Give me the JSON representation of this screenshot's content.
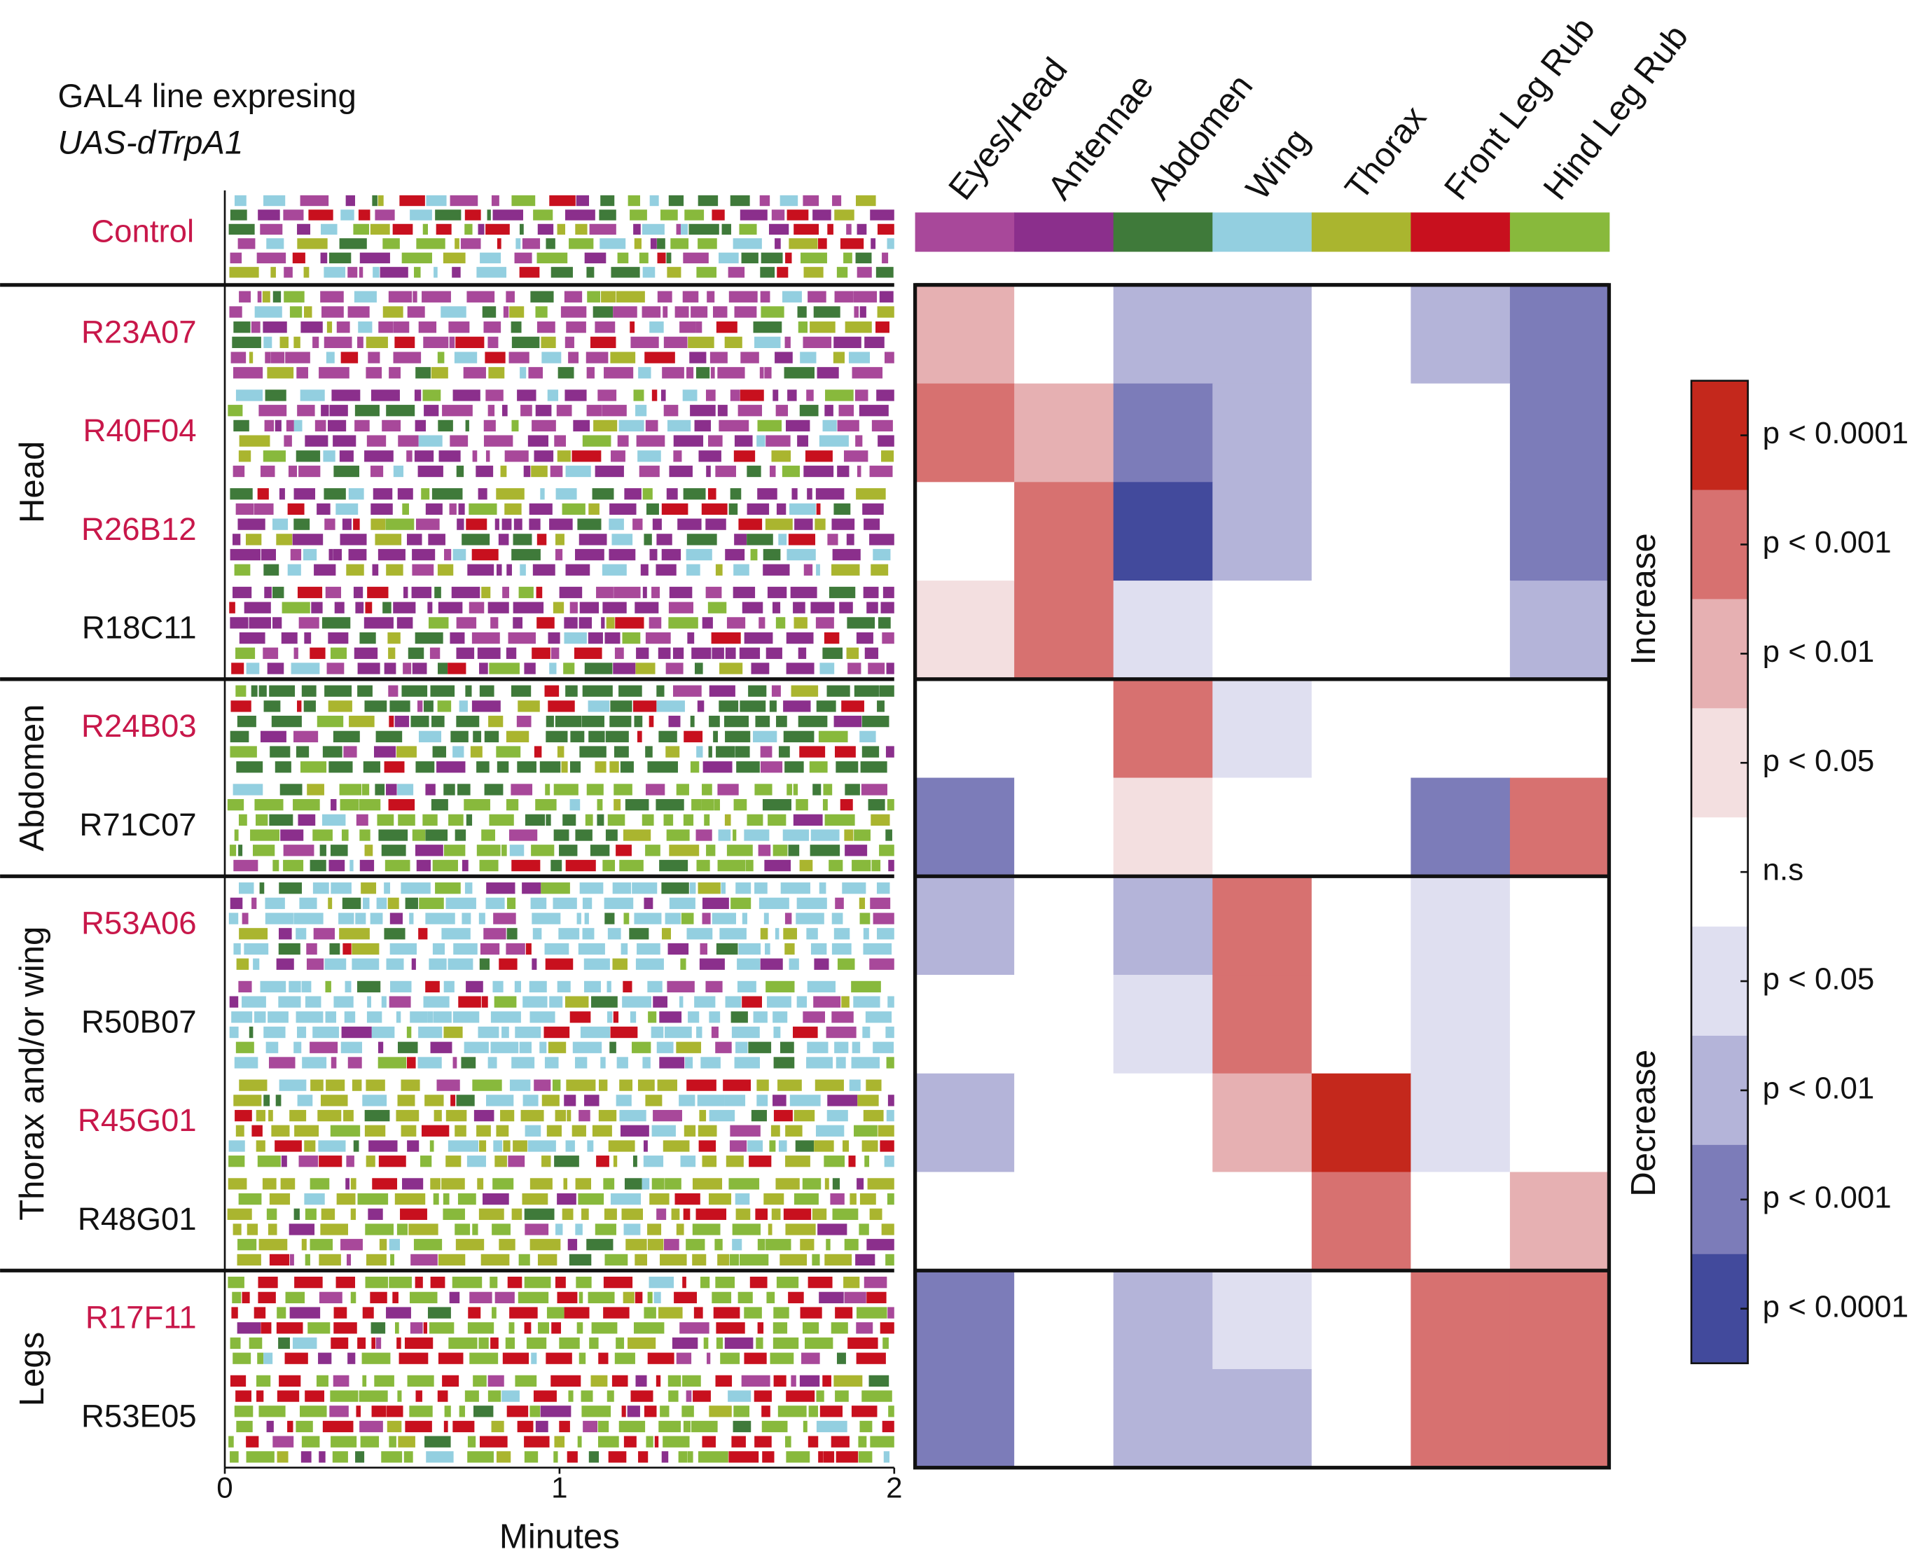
{
  "chart_data": {
    "type": "heatmap",
    "title_lines": [
      "GAL4 line expresing",
      "UAS-dTrpA1"
    ],
    "highlight_color": "#c8174a",
    "control": {
      "name": "Control",
      "highlight": true
    },
    "behaviors": [
      {
        "name": "Eyes/Head",
        "color": "#a8489a"
      },
      {
        "name": "Antennae",
        "color": "#8b2f8c"
      },
      {
        "name": "Abdomen",
        "color": "#3f7a3a"
      },
      {
        "name": "Wing",
        "color": "#93cfe0"
      },
      {
        "name": "Thorax",
        "color": "#aab52f"
      },
      {
        "name": "Front Leg Rub",
        "color": "#c8101e"
      },
      {
        "name": "Hind Leg Rub",
        "color": "#88b93c"
      }
    ],
    "groups": [
      {
        "name": "Head",
        "rows": [
          {
            "name": "R23A07",
            "highlight": true,
            "levels": [
              2,
              0,
              -2,
              -2,
              0,
              -2,
              -3
            ]
          },
          {
            "name": "R40F04",
            "highlight": true,
            "levels": [
              3,
              2,
              -3,
              -2,
              0,
              0,
              -3
            ]
          },
          {
            "name": "R26B12",
            "highlight": true,
            "levels": [
              0,
              3,
              -4,
              -2,
              0,
              0,
              -3
            ]
          },
          {
            "name": "R18C11",
            "highlight": false,
            "levels": [
              1,
              3,
              -1,
              0,
              0,
              0,
              -2
            ]
          }
        ]
      },
      {
        "name": "Abdomen",
        "rows": [
          {
            "name": "R24B03",
            "highlight": true,
            "levels": [
              0,
              0,
              3,
              -1,
              0,
              0,
              0
            ]
          },
          {
            "name": "R71C07",
            "highlight": false,
            "levels": [
              -3,
              0,
              1,
              0,
              0,
              -3,
              3
            ]
          }
        ]
      },
      {
        "name": "Thorax and/or wing",
        "rows": [
          {
            "name": "R53A06",
            "highlight": true,
            "levels": [
              -2,
              0,
              -2,
              3,
              0,
              -1,
              0
            ]
          },
          {
            "name": "R50B07",
            "highlight": false,
            "levels": [
              0,
              0,
              -1,
              3,
              0,
              -1,
              0
            ]
          },
          {
            "name": "R45G01",
            "highlight": true,
            "levels": [
              -2,
              0,
              0,
              2,
              4,
              -1,
              0
            ]
          },
          {
            "name": "R48G01",
            "highlight": false,
            "levels": [
              0,
              0,
              0,
              0,
              3,
              0,
              2
            ]
          }
        ]
      },
      {
        "name": "Legs",
        "rows": [
          {
            "name": "R17F11",
            "highlight": true,
            "levels": [
              -3,
              0,
              -2,
              -1,
              0,
              3,
              3
            ]
          },
          {
            "name": "R53E05",
            "highlight": false,
            "levels": [
              -3,
              0,
              -2,
              -2,
              0,
              3,
              3
            ]
          }
        ]
      }
    ],
    "x_label": "Minutes",
    "xlim": [
      0,
      2
    ],
    "xticks": [
      0,
      1,
      2
    ],
    "legend": {
      "increase": "Increase",
      "decrease": "Decrease",
      "levels": [
        {
          "value": 4,
          "label": "p < 0.0001",
          "color": "#c4281c"
        },
        {
          "value": 3,
          "label": "p < 0.001",
          "color": "#d77170"
        },
        {
          "value": 2,
          "label": "p < 0.01",
          "color": "#e6b0b2"
        },
        {
          "value": 1,
          "label": "p < 0.05",
          "color": "#f3dfe0"
        },
        {
          "value": 0,
          "label": "n.s",
          "color": "#ffffff"
        },
        {
          "value": -1,
          "label": "p < 0.05",
          "color": "#dfdff0"
        },
        {
          "value": -2,
          "label": "p < 0.01",
          "color": "#b4b4d9"
        },
        {
          "value": -3,
          "label": "p < 0.001",
          "color": "#7c7cb9"
        },
        {
          "value": -4,
          "label": "p < 0.0001",
          "color": "#424a9c"
        }
      ]
    }
  }
}
